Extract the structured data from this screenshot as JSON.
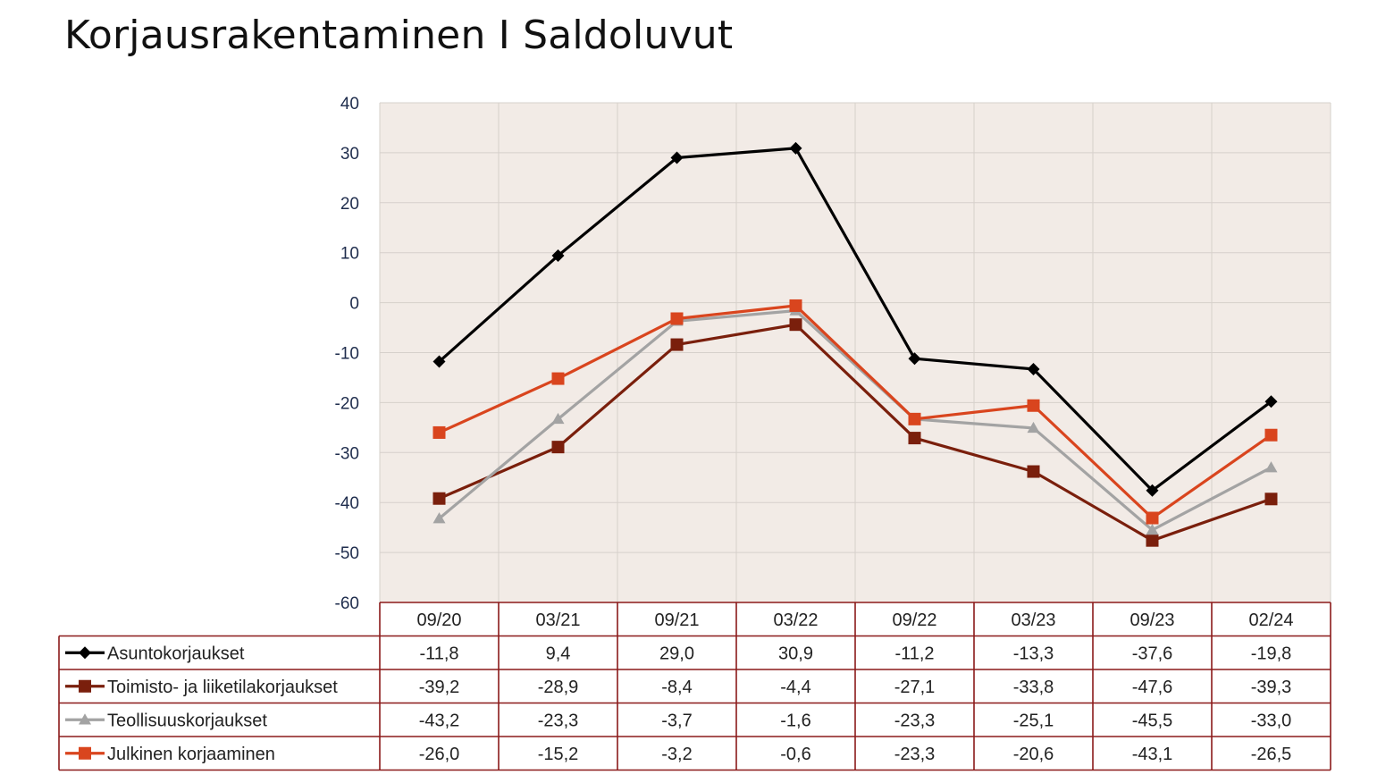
{
  "title": "Korjausrakentaminen I Saldoluvut",
  "chart_data": {
    "type": "line",
    "categories": [
      "09/20",
      "03/21",
      "09/21",
      "03/22",
      "09/22",
      "03/23",
      "09/23",
      "02/24"
    ],
    "ylim": [
      -60,
      40
    ],
    "yticks": [
      40,
      30,
      20,
      10,
      0,
      -10,
      -20,
      -30,
      -40,
      -50,
      -60
    ],
    "grid": true,
    "legend_placement": "data table below chart",
    "plot_background": "#f2ebe6",
    "table_border_color": "#8b1a1a",
    "series": [
      {
        "name": "Asuntokorjaukset",
        "color": "#000000",
        "marker": "diamond",
        "values": [
          -11.8,
          9.4,
          29.0,
          30.9,
          -11.2,
          -13.3,
          -37.6,
          -19.8
        ],
        "labels": [
          "-11,8",
          "9,4",
          "29,0",
          "30,9",
          "-11,2",
          "-13,3",
          "-37,6",
          "-19,8"
        ]
      },
      {
        "name": "Toimisto- ja liiketilakorjaukset",
        "color": "#7a1f0c",
        "marker": "square",
        "values": [
          -39.2,
          -28.9,
          -8.4,
          -4.4,
          -27.1,
          -33.8,
          -47.6,
          -39.3
        ],
        "labels": [
          "-39,2",
          "-28,9",
          "-8,4",
          "-4,4",
          "-27,1",
          "-33,8",
          "-47,6",
          "-39,3"
        ]
      },
      {
        "name": "Teollisuuskorjaukset",
        "color": "#a3a3a3",
        "marker": "triangle",
        "values": [
          -43.2,
          -23.3,
          -3.7,
          -1.6,
          -23.3,
          -25.1,
          -45.5,
          -33.0
        ],
        "labels": [
          "-43,2",
          "-23,3",
          "-3,7",
          "-1,6",
          "-23,3",
          "-25,1",
          "-45,5",
          "-33,0"
        ]
      },
      {
        "name": "Julkinen korjaaminen",
        "color": "#d9451e",
        "marker": "square",
        "values": [
          -26.0,
          -15.2,
          -3.2,
          -0.6,
          -23.3,
          -20.6,
          -43.1,
          -26.5
        ],
        "labels": [
          "-26,0",
          "-15,2",
          "-3,2",
          "-0,6",
          "-23,3",
          "-20,6",
          "-43,1",
          "-26,5"
        ]
      }
    ]
  }
}
